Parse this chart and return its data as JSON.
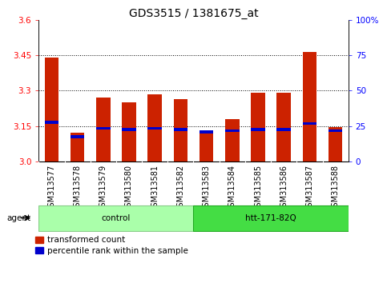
{
  "title": "GDS3515 / 1381675_at",
  "samples": [
    "GSM313577",
    "GSM313578",
    "GSM313579",
    "GSM313580",
    "GSM313581",
    "GSM313582",
    "GSM313583",
    "GSM313584",
    "GSM313585",
    "GSM313586",
    "GSM313587",
    "GSM313588"
  ],
  "transformed_counts": [
    3.44,
    3.12,
    3.27,
    3.25,
    3.285,
    3.265,
    3.12,
    3.18,
    3.29,
    3.29,
    3.465,
    3.145
  ],
  "percentile_values": [
    3.165,
    3.105,
    3.14,
    3.135,
    3.14,
    3.135,
    3.125,
    3.13,
    3.135,
    3.135,
    3.16,
    3.13
  ],
  "y_min": 3.0,
  "y_max": 3.6,
  "y_ticks_left": [
    3.0,
    3.15,
    3.3,
    3.45,
    3.6
  ],
  "y_ticks_right": [
    0,
    25,
    50,
    75,
    100
  ],
  "grid_lines": [
    3.15,
    3.3,
    3.45
  ],
  "groups": [
    {
      "label": "control",
      "start": 0,
      "end": 5,
      "color": "#aaffaa",
      "edge_color": "#88cc88"
    },
    {
      "label": "htt-171-82Q",
      "start": 6,
      "end": 11,
      "color": "#44dd44",
      "edge_color": "#22aa22"
    }
  ],
  "agent_label": "agent",
  "bar_color_red": "#cc2200",
  "bar_color_blue": "#0000cc",
  "bg_color_xtick": "#c8c8c8",
  "title_fontsize": 10,
  "tick_fontsize": 7.5,
  "label_fontsize": 7,
  "legend_fontsize": 7.5
}
